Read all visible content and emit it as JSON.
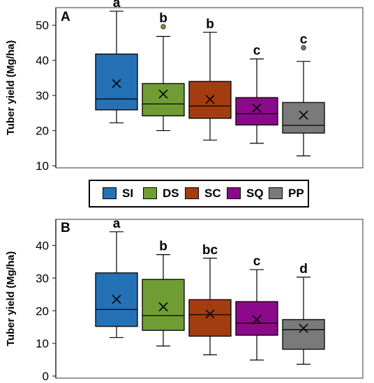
{
  "chart_data": [
    {
      "type": "box",
      "panel_label": "A",
      "ylabel": "Tuber yield (Mg/ha)",
      "ylim": [
        10,
        55
      ],
      "yticks": [
        10,
        20,
        30,
        40,
        50
      ],
      "grid": false,
      "series": [
        {
          "name": "SI",
          "color": "#2471b5",
          "whisker_low": 22.2,
          "q1": 25.9,
          "median": 29.0,
          "q3": 41.8,
          "whisker_high": 54.0,
          "mean": 33.4,
          "outliers": [],
          "letter": "a"
        },
        {
          "name": "DS",
          "color": "#6f9d34",
          "whisker_low": 20.0,
          "q1": 24.2,
          "median": 27.6,
          "q3": 33.4,
          "whisker_high": 46.8,
          "mean": 30.4,
          "outliers": [
            49.6
          ],
          "letter": "b"
        },
        {
          "name": "SC",
          "color": "#a33d10",
          "whisker_low": 17.3,
          "q1": 23.5,
          "median": 27.0,
          "q3": 34.0,
          "whisker_high": 48.0,
          "mean": 28.9,
          "outliers": [],
          "letter": "b"
        },
        {
          "name": "SQ",
          "color": "#8b0a8b",
          "whisker_low": 16.4,
          "q1": 21.6,
          "median": 24.8,
          "q3": 29.4,
          "whisker_high": 40.4,
          "mean": 26.4,
          "outliers": [],
          "letter": "c"
        },
        {
          "name": "PP",
          "color": "#7a7a7a",
          "whisker_low": 12.8,
          "q1": 19.3,
          "median": 21.5,
          "q3": 28.0,
          "whisker_high": 39.7,
          "mean": 24.4,
          "outliers": [
            43.6
          ],
          "letter": "c"
        }
      ]
    },
    {
      "type": "box",
      "panel_label": "B",
      "ylabel": "Tuber yield (Mg/ha)",
      "ylim": [
        0,
        48
      ],
      "yticks": [
        0,
        10,
        20,
        30,
        40
      ],
      "grid": false,
      "series": [
        {
          "name": "SI",
          "color": "#2471b5",
          "whisker_low": 11.8,
          "q1": 15.2,
          "median": 20.4,
          "q3": 31.6,
          "whisker_high": 44.2,
          "mean": 23.5,
          "outliers": [],
          "letter": "a"
        },
        {
          "name": "DS",
          "color": "#6f9d34",
          "whisker_low": 9.2,
          "q1": 14.0,
          "median": 18.5,
          "q3": 29.6,
          "whisker_high": 37.2,
          "mean": 21.2,
          "outliers": [],
          "letter": "b"
        },
        {
          "name": "SC",
          "color": "#a33d10",
          "whisker_low": 6.5,
          "q1": 12.2,
          "median": 18.8,
          "q3": 23.4,
          "whisker_high": 36.1,
          "mean": 19.0,
          "outliers": [],
          "letter": "bc"
        },
        {
          "name": "SQ",
          "color": "#8b0a8b",
          "whisker_low": 4.9,
          "q1": 12.5,
          "median": 16.2,
          "q3": 22.8,
          "whisker_high": 32.6,
          "mean": 17.3,
          "outliers": [],
          "letter": "c"
        },
        {
          "name": "PP",
          "color": "#7a7a7a",
          "whisker_low": 3.6,
          "q1": 8.2,
          "median": 14.2,
          "q3": 17.3,
          "whisker_high": 30.3,
          "mean": 14.6,
          "outliers": [],
          "letter": "d"
        }
      ]
    }
  ],
  "legend": [
    {
      "label": "SI",
      "color": "#2471b5"
    },
    {
      "label": "DS",
      "color": "#6f9d34"
    },
    {
      "label": "SC",
      "color": "#a33d10"
    },
    {
      "label": "SQ",
      "color": "#8b0a8b"
    },
    {
      "label": "PP",
      "color": "#7a7a7a"
    }
  ]
}
